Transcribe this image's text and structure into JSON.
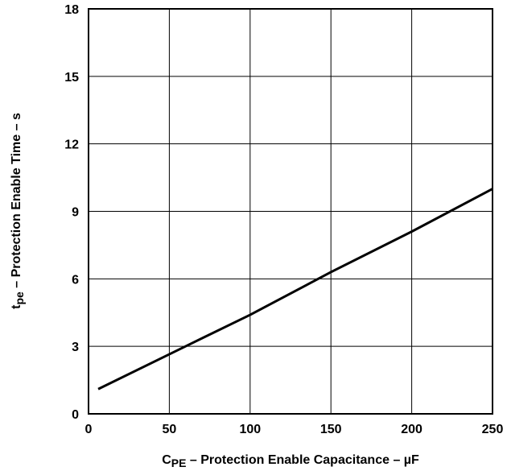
{
  "chart_data": {
    "type": "line",
    "title": "",
    "xlabel": {
      "main": "C",
      "subscript": "PE",
      "rest": " – Protection Enable Capacitance – µF"
    },
    "ylabel": {
      "main": "t",
      "subscript": "pe",
      "rest": " – Protection Enable Time – s"
    },
    "xlim": [
      0,
      250
    ],
    "ylim": [
      0,
      18
    ],
    "xticks": [
      0,
      50,
      100,
      150,
      200,
      250
    ],
    "yticks": [
      0,
      3,
      6,
      9,
      12,
      15,
      18
    ],
    "xtick_labels": [
      "0",
      "50",
      "100",
      "150",
      "200",
      "250"
    ],
    "ytick_labels": [
      "0",
      "3",
      "6",
      "9",
      "12",
      "15",
      "18"
    ],
    "grid": true,
    "series": [
      {
        "x": [
          6,
          60,
          100,
          150,
          200,
          250
        ],
        "y": [
          1.1,
          3.0,
          4.4,
          6.3,
          8.1,
          10.0
        ]
      }
    ]
  }
}
